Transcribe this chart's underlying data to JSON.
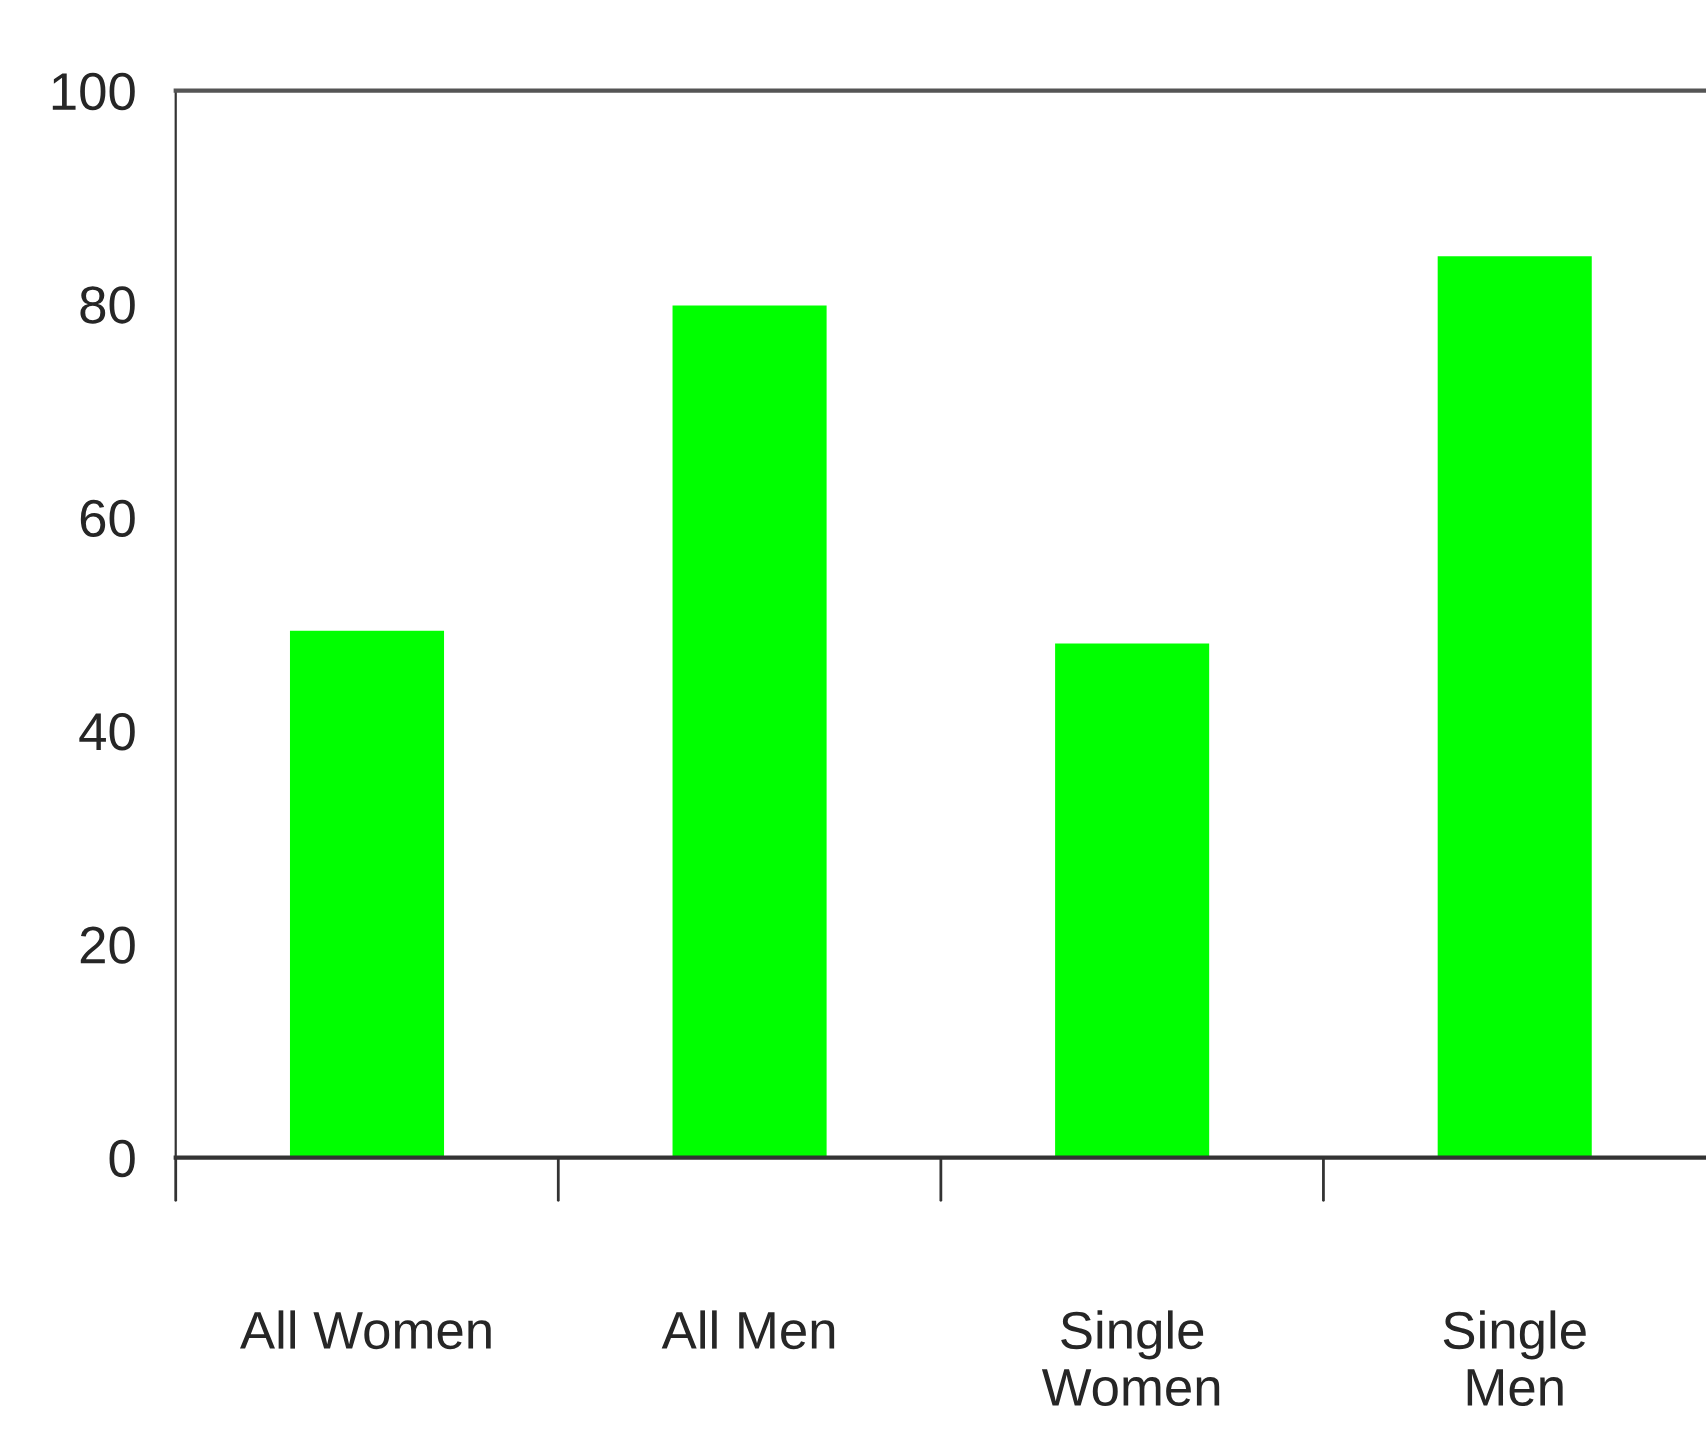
{
  "chart_data": {
    "type": "bar",
    "categories": [
      "All Women",
      "All Men",
      "Single\nWomen",
      "Single\nMen"
    ],
    "values": [
      49.5,
      80,
      48.3,
      84.6
    ],
    "color": "#00ff00",
    "ylim": [
      0,
      100
    ],
    "yticks": [
      0,
      20,
      40,
      60,
      80,
      100
    ],
    "grid": false,
    "legend": false
  }
}
